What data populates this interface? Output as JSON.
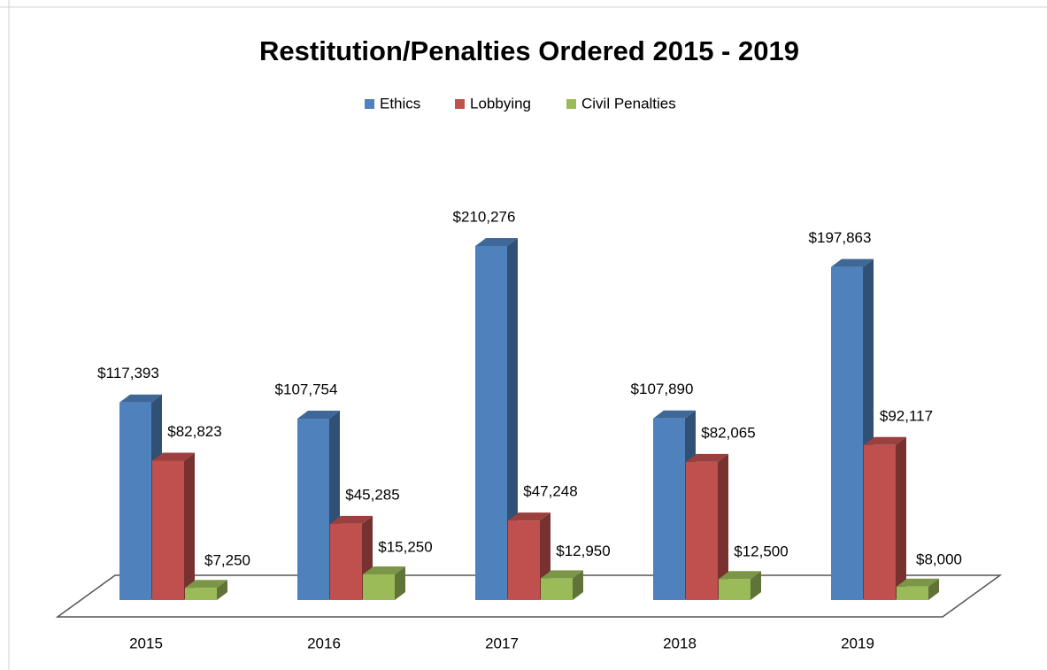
{
  "chart_data": {
    "type": "bar3d",
    "title": "Restitution/Penalties Ordered  2015 - 2019",
    "categories": [
      "2015",
      "2016",
      "2017",
      "2018",
      "2019"
    ],
    "series": [
      {
        "name": "Ethics",
        "color": "#4f81bd",
        "values": [
          117393,
          107754,
          210276,
          107890,
          197863
        ],
        "value_labels": [
          "$117,393",
          "$107,754",
          "$210,276",
          "$107,890",
          "$197,863"
        ]
      },
      {
        "name": "Lobbying",
        "color": "#c0504d",
        "values": [
          82823,
          45285,
          47248,
          82065,
          92117
        ],
        "value_labels": [
          "$82,823",
          "$45,285",
          "$47,248",
          "$82,065",
          "$92,117"
        ]
      },
      {
        "name": "Civil Penalties",
        "color": "#9bbb59",
        "values": [
          7250,
          15250,
          12950,
          12500,
          8000
        ],
        "value_labels": [
          "$7,250",
          "$15,250",
          "$12,950",
          "$12,500",
          "$8,000"
        ]
      }
    ],
    "legend": "top"
  }
}
